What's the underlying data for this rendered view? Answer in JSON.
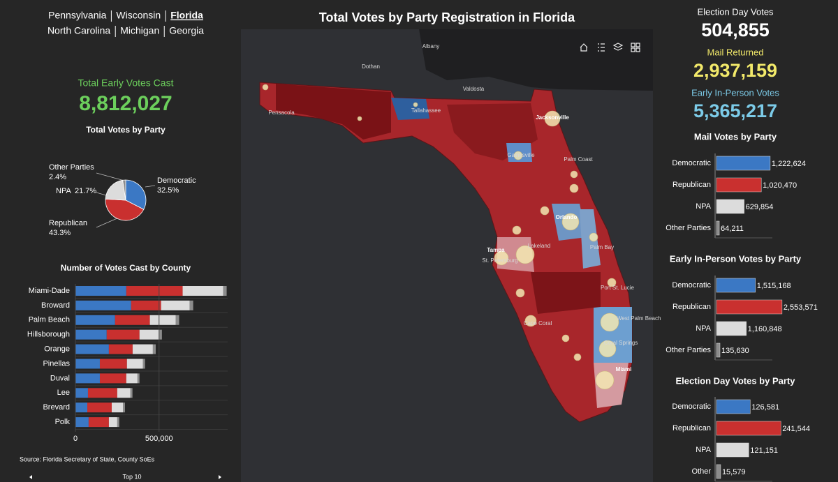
{
  "nav": {
    "states": [
      "Pennsylvania",
      "Wisconsin",
      "Florida",
      "North Carolina",
      "Michigan",
      "Georgia"
    ],
    "active": "Florida"
  },
  "early_total": {
    "label": "Total Early Votes Cast",
    "value": "8,812,027"
  },
  "pie": {
    "type": "pie",
    "title": "Total Votes by Party",
    "categories": [
      "Democratic",
      "Republican",
      "NPA",
      "Other Parties"
    ],
    "values": [
      32.5,
      43.3,
      21.7,
      2.4
    ],
    "value_labels": [
      "32.5%",
      "43.3%",
      "21.7%",
      "2.4%"
    ],
    "colors": [
      "#3b78c4",
      "#c9302f",
      "#dcdcdc",
      "#8c8c8c"
    ]
  },
  "county_chart": {
    "type": "stacked-bar",
    "orientation": "horizontal",
    "title": "Number of Votes Cast by County",
    "categories": [
      "Miami-Dade",
      "Broward",
      "Palm Beach",
      "Hillsborough",
      "Orange",
      "Pinellas",
      "Duval",
      "Lee",
      "Brevard",
      "Polk"
    ],
    "series": [
      {
        "name": "Democratic",
        "color": "#3b78c4",
        "values": [
          304000,
          333000,
          237000,
          187000,
          200000,
          146000,
          146000,
          75000,
          71000,
          79000
        ]
      },
      {
        "name": "Republican",
        "color": "#c9302f",
        "values": [
          337000,
          179000,
          208000,
          196000,
          142000,
          162000,
          158000,
          175000,
          146000,
          121000
        ]
      },
      {
        "name": "NPA",
        "color": "#dcdcdc",
        "values": [
          242000,
          171000,
          154000,
          117000,
          121000,
          96000,
          67000,
          79000,
          67000,
          50000
        ]
      },
      {
        "name": "Other",
        "color": "#8c8c8c",
        "values": [
          21000,
          21000,
          21000,
          17000,
          17000,
          12000,
          12000,
          12000,
          12000,
          12000
        ]
      }
    ],
    "xlim": [
      0,
      910000
    ],
    "xticks": [
      0,
      {
        "value": 500000,
        "label": "500,000"
      }
    ]
  },
  "source": "Source: Florida Secretary of State, County SoEs",
  "pager": "Top 10",
  "map": {
    "title": "Total Votes by Party Registration in Florida",
    "places": [
      "Albany",
      "Dothan",
      "Valdosta",
      "Pensacola",
      "Tallahassee",
      "Jacksonville",
      "Gainesville",
      "Palm Coast",
      "Orlando",
      "Palm Bay",
      "Lakeland",
      "Tampa",
      "St. Petersburg",
      "Port St. Lucie",
      "West Palm Beach",
      "Cape Coral",
      "Coral Springs",
      "Miami"
    ]
  },
  "kpis": [
    {
      "label": "Election Day Votes",
      "value": "504,855",
      "color": "#ffffff"
    },
    {
      "label": "Mail Returned",
      "value": "2,937,159",
      "color": "#f2e96a"
    },
    {
      "label": "Early In-Person Votes",
      "value": "5,365,217",
      "color": "#7ccbe8"
    }
  ],
  "party_charts": [
    {
      "type": "bar",
      "title": "Mail Votes by Party",
      "categories": [
        "Democratic",
        "Republican",
        "NPA",
        "Other Parties"
      ],
      "values": [
        1222624,
        1020470,
        629854,
        64211
      ],
      "value_labels": [
        "1,222,624",
        "1,020,470",
        "629,854",
        "64,211"
      ],
      "colors": [
        "#3b78c4",
        "#c9302f",
        "#dcdcdc",
        "#8c8c8c"
      ],
      "xlim": [
        0,
        1590000
      ]
    },
    {
      "type": "bar",
      "title": "Early In-Person Votes by Party",
      "categories": [
        "Democratic",
        "Republican",
        "NPA",
        "Other Parties"
      ],
      "values": [
        1515168,
        2553571,
        1160848,
        135630
      ],
      "value_labels": [
        "1,515,168",
        "2,553,571",
        "1,160,848",
        "135,630"
      ],
      "colors": [
        "#3b78c4",
        "#c9302f",
        "#dcdcdc",
        "#8c8c8c"
      ],
      "xlim": [
        0,
        2720000
      ]
    },
    {
      "type": "bar",
      "title": "Election Day Votes by Party",
      "categories": [
        "Democratic",
        "Republican",
        "NPA",
        "Other"
      ],
      "values": [
        126581,
        241544,
        121151,
        15579
      ],
      "value_labels": [
        "126,581",
        "241,544",
        "121,151",
        "15,579"
      ],
      "colors": [
        "#3b78c4",
        "#c9302f",
        "#dcdcdc",
        "#8c8c8c"
      ],
      "xlim": [
        0,
        262000
      ]
    }
  ]
}
